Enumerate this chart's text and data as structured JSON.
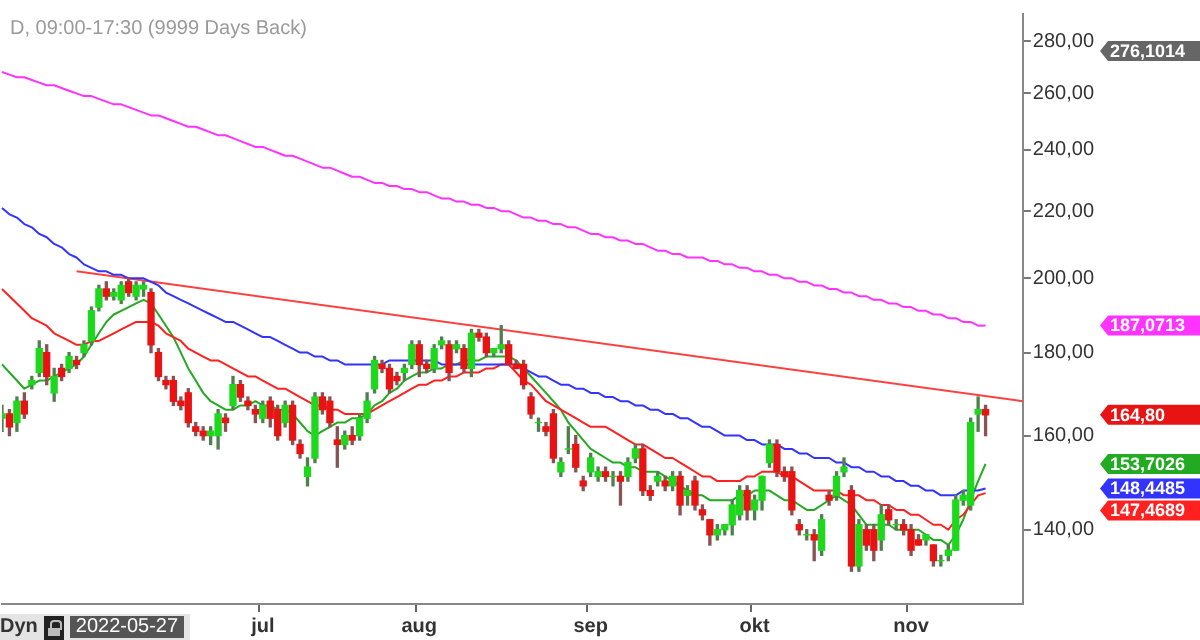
{
  "chart_data": {
    "type": "candlestick",
    "title": "D, 09:00-17:30 (9999 Days Back)",
    "categories": [
      null,
      null,
      null,
      null,
      null,
      null,
      null,
      null,
      null,
      null,
      null,
      null,
      null,
      null,
      null,
      null,
      null,
      null,
      null,
      null,
      null,
      null,
      null,
      null,
      null,
      null,
      null,
      null,
      null,
      null,
      null,
      null,
      null,
      null,
      null,
      "jul",
      null,
      null,
      null,
      null,
      null,
      null,
      null,
      null,
      null,
      null,
      null,
      null,
      null,
      null,
      null,
      null,
      null,
      null,
      null,
      null,
      "aug",
      null,
      null,
      null,
      null,
      null,
      null,
      null,
      null,
      null,
      null,
      null,
      null,
      null,
      null,
      null,
      null,
      null,
      null,
      null,
      null,
      null,
      null,
      "sep",
      null,
      null,
      null,
      null,
      null,
      null,
      null,
      null,
      null,
      null,
      null,
      null,
      null,
      null,
      null,
      null,
      null,
      null,
      null,
      null,
      null,
      "okt",
      null,
      null,
      null,
      null,
      null,
      null,
      null,
      null,
      null,
      null,
      null,
      null,
      null,
      null,
      null,
      null,
      null,
      null,
      null,
      null,
      "nov",
      null,
      null,
      null,
      null,
      null,
      null,
      null,
      null,
      null,
      null,
      null,
      null,
      null,
      null,
      null
    ],
    "ohlc": [
      [
        164,
        167,
        161,
        165
      ],
      [
        165,
        166,
        160,
        162
      ],
      [
        163,
        169,
        161,
        168
      ],
      [
        168,
        170,
        164,
        165
      ],
      [
        172,
        174,
        171,
        173
      ],
      [
        175,
        183,
        174,
        181
      ],
      [
        180,
        182,
        172,
        174
      ],
      [
        170,
        176,
        168,
        174
      ],
      [
        176,
        177,
        173,
        174
      ],
      [
        176,
        180,
        175,
        179
      ],
      [
        178,
        179,
        176,
        177
      ],
      [
        180,
        183,
        179,
        182
      ],
      [
        183,
        192,
        182,
        191
      ],
      [
        192,
        198,
        191,
        197
      ],
      [
        197,
        199,
        194,
        195
      ],
      [
        195,
        197,
        194,
        196
      ],
      [
        194,
        199,
        193,
        198
      ],
      [
        199,
        200,
        195,
        196
      ],
      [
        195,
        199,
        194,
        198
      ],
      [
        197,
        199,
        195,
        198
      ],
      [
        196,
        197,
        180,
        182
      ],
      [
        180,
        181,
        173,
        174
      ],
      [
        173,
        174,
        171,
        172
      ],
      [
        173,
        174,
        167,
        168
      ],
      [
        168,
        169,
        166,
        167
      ],
      [
        170,
        171,
        162,
        163
      ],
      [
        162,
        163,
        160,
        161
      ],
      [
        161,
        162,
        159,
        160
      ],
      [
        160,
        162,
        158,
        161
      ],
      [
        160,
        166,
        157,
        165
      ],
      [
        164,
        165,
        161,
        163
      ],
      [
        167,
        174,
        166,
        172
      ],
      [
        172,
        173,
        168,
        169
      ],
      [
        168,
        169,
        166,
        167
      ],
      [
        166,
        167,
        163,
        165
      ],
      [
        164,
        168,
        163,
        167
      ],
      [
        168,
        169,
        162,
        164
      ],
      [
        166,
        167,
        159,
        160
      ],
      [
        163,
        168,
        162,
        167
      ],
      [
        167,
        168,
        158,
        159
      ],
      [
        158,
        159,
        155,
        156
      ],
      [
        151,
        155,
        149,
        153
      ],
      [
        155,
        170,
        154,
        169
      ],
      [
        169,
        170,
        165,
        166
      ],
      [
        168,
        169,
        162,
        163
      ],
      [
        159,
        162,
        153,
        158
      ],
      [
        158,
        161,
        157,
        160
      ],
      [
        160,
        162,
        158,
        159
      ],
      [
        160,
        165,
        159,
        164
      ],
      [
        164,
        170,
        163,
        168
      ],
      [
        171,
        179,
        170,
        178
      ],
      [
        177,
        178,
        175,
        176
      ],
      [
        176,
        177,
        170,
        171
      ],
      [
        174,
        175,
        172,
        173
      ],
      [
        175,
        177,
        173,
        176
      ],
      [
        177,
        183,
        176,
        182
      ],
      [
        182,
        183,
        174,
        177
      ],
      [
        177,
        178,
        175,
        176
      ],
      [
        176,
        182,
        175,
        181
      ],
      [
        182,
        184,
        181,
        183
      ],
      [
        182,
        183,
        173,
        175
      ],
      [
        181,
        183,
        180,
        182
      ],
      [
        181,
        182,
        175,
        176
      ],
      [
        176,
        186,
        174,
        185
      ],
      [
        185,
        186,
        183,
        184
      ],
      [
        184,
        185,
        179,
        180
      ],
      [
        180,
        181,
        179,
        181
      ],
      [
        181,
        187,
        180,
        182
      ],
      [
        182,
        183,
        177,
        177
      ],
      [
        177,
        178,
        176,
        176
      ],
      [
        177,
        178,
        171,
        172
      ],
      [
        169,
        170,
        164,
        165
      ],
      [
        163,
        164,
        161,
        163
      ],
      [
        162,
        163,
        160,
        161
      ],
      [
        165,
        166,
        154,
        155
      ],
      [
        152,
        155,
        151,
        154
      ],
      [
        157,
        162,
        156,
        157
      ],
      [
        158,
        160,
        152,
        153
      ],
      [
        150,
        151,
        148,
        149
      ],
      [
        152,
        156,
        151,
        155
      ],
      [
        151,
        153,
        150,
        152
      ],
      [
        152,
        153,
        150,
        151
      ],
      [
        151,
        152,
        149,
        151
      ],
      [
        151,
        152,
        145,
        150
      ],
      [
        151,
        155,
        150,
        154
      ],
      [
        155,
        158,
        154,
        157
      ],
      [
        157,
        158,
        147,
        148
      ],
      [
        148,
        149,
        146,
        147
      ],
      [
        150,
        152,
        149,
        151
      ],
      [
        150,
        151,
        148,
        149
      ],
      [
        149,
        152,
        148,
        151
      ],
      [
        151,
        152,
        143,
        145
      ],
      [
        147,
        149,
        145,
        148
      ],
      [
        150,
        151,
        144,
        145
      ],
      [
        144,
        145,
        142,
        143
      ],
      [
        142,
        142,
        137,
        139
      ],
      [
        139,
        141,
        138,
        140
      ],
      [
        140,
        141,
        139,
        141
      ],
      [
        141,
        146,
        139,
        145
      ],
      [
        143,
        149,
        142,
        148
      ],
      [
        148,
        149,
        142,
        144
      ],
      [
        144,
        147,
        142,
        146
      ],
      [
        146,
        151,
        144,
        151
      ],
      [
        154,
        159,
        153,
        158
      ],
      [
        158,
        159,
        151,
        152
      ],
      [
        152,
        153,
        150,
        151
      ],
      [
        152,
        153,
        143,
        144
      ],
      [
        141,
        142,
        139,
        140
      ],
      [
        139,
        140,
        138,
        139
      ],
      [
        139,
        140,
        134,
        138
      ],
      [
        136,
        143,
        135,
        142
      ],
      [
        147,
        148,
        145,
        146
      ],
      [
        147,
        152,
        146,
        151
      ],
      [
        152,
        155,
        151,
        153
      ],
      [
        148,
        149,
        132,
        133
      ],
      [
        133,
        142,
        132,
        141
      ],
      [
        140,
        141,
        136,
        137
      ],
      [
        140,
        141,
        134,
        136
      ],
      [
        138,
        145,
        136,
        143
      ],
      [
        144,
        145,
        141,
        142
      ],
      [
        141,
        142,
        140,
        141
      ],
      [
        141,
        142,
        139,
        140
      ],
      [
        140,
        141,
        135,
        136
      ],
      [
        138,
        139,
        137,
        137
      ],
      [
        138,
        139,
        137,
        139
      ],
      [
        137,
        137,
        133,
        134
      ],
      [
        134,
        135,
        133,
        134
      ],
      [
        135,
        137,
        134,
        136
      ],
      [
        136,
        147,
        136,
        146
      ],
      [
        146,
        148,
        145,
        147
      ],
      [
        145,
        164,
        144,
        163
      ],
      [
        165,
        169,
        161,
        166
      ],
      [
        166,
        167,
        160,
        164.8
      ],
      null,
      null,
      null,
      null,
      null
    ],
    "series": [
      {
        "type": "line",
        "color": "#ff33ff",
        "values": [
          268,
          267,
          266,
          266,
          265,
          264,
          263,
          263,
          262,
          261,
          260,
          259,
          259,
          258,
          257,
          256,
          256,
          255,
          254,
          253,
          252,
          252,
          251,
          250,
          249,
          248,
          248,
          247,
          246,
          245,
          245,
          244,
          243,
          242,
          241,
          241,
          240,
          239,
          238,
          238,
          237,
          236,
          235,
          234,
          234,
          233,
          232,
          231,
          231,
          230,
          229,
          229,
          228,
          228,
          227,
          227,
          226,
          226,
          225,
          224,
          224,
          223,
          223,
          222,
          222,
          221,
          221,
          220,
          220,
          219,
          218,
          218,
          217,
          217,
          216,
          216,
          215,
          215,
          214,
          213,
          213,
          212,
          212,
          211,
          211,
          210,
          210,
          209,
          208,
          208,
          207,
          207,
          206,
          206,
          206,
          205,
          205,
          204,
          204,
          203,
          203,
          202,
          202,
          201,
          201,
          200,
          200,
          199,
          199,
          198,
          198,
          197,
          197,
          196,
          196,
          195,
          195,
          194,
          194,
          193,
          193,
          192,
          192,
          191,
          191,
          190,
          190,
          189,
          189,
          188,
          188,
          187,
          187.07,
          null,
          null,
          null,
          null,
          null
        ]
      },
      {
        "type": "line",
        "color": "#3333ff",
        "values": [
          221,
          219,
          218,
          216,
          215,
          213,
          212,
          210,
          209,
          207,
          206,
          204,
          203,
          202,
          202,
          201,
          201,
          200,
          200,
          200,
          199,
          198,
          196,
          195,
          194,
          193,
          192,
          191,
          190,
          189,
          188,
          188,
          187,
          186,
          185,
          184,
          184,
          183,
          182,
          181,
          180,
          180,
          179,
          179,
          178,
          178,
          177,
          177,
          177,
          177,
          177,
          177,
          178,
          178,
          178,
          178,
          178,
          178,
          178,
          177,
          177,
          177,
          177,
          177,
          177,
          177,
          177,
          177,
          177,
          177,
          176,
          175,
          174,
          174,
          173,
          172,
          172,
          171,
          171,
          170,
          170,
          169,
          169,
          168,
          168,
          167,
          167,
          166,
          166,
          165,
          165,
          164,
          164,
          163,
          162,
          162,
          161,
          160,
          160,
          160,
          159,
          159,
          158,
          158,
          158,
          157,
          157,
          156,
          156,
          155,
          155,
          155,
          154,
          154,
          153,
          153,
          152,
          152,
          151,
          151,
          150,
          150,
          149,
          149,
          148,
          148,
          147,
          147,
          147,
          148,
          148,
          148,
          148.45,
          null,
          null,
          null,
          null,
          null
        ]
      },
      {
        "type": "line",
        "color": "#ff2020",
        "values": [
          197,
          195,
          193,
          191,
          189,
          188,
          187,
          185,
          184,
          183,
          182,
          182,
          183,
          183,
          184,
          185,
          186,
          187,
          188,
          188,
          188,
          187,
          185,
          184,
          183,
          181,
          180,
          179,
          178,
          178,
          177,
          176,
          175,
          174,
          174,
          173,
          172,
          171,
          171,
          170,
          169,
          168,
          167,
          167,
          166,
          166,
          165,
          165,
          165,
          165,
          166,
          167,
          168,
          169,
          170,
          171,
          172,
          172,
          173,
          173,
          174,
          174,
          175,
          175,
          175,
          176,
          176,
          177,
          177,
          175,
          173,
          172,
          170,
          168,
          167,
          166,
          165,
          164,
          163,
          162,
          162,
          162,
          161,
          160,
          159,
          158,
          158,
          157,
          156,
          155,
          155,
          154,
          153,
          152,
          151,
          151,
          150,
          150,
          150,
          150,
          151,
          151,
          152,
          152,
          152,
          151,
          151,
          150,
          149,
          148,
          148,
          148,
          148,
          147,
          147,
          147,
          146,
          146,
          145,
          145,
          144,
          144,
          143,
          143,
          142,
          141,
          141,
          140,
          142,
          143,
          145,
          147,
          147.47,
          null,
          null,
          null,
          null,
          null
        ]
      },
      {
        "type": "line",
        "color": "#22aa22",
        "values": [
          177,
          175,
          173,
          171,
          172,
          173,
          173,
          174,
          175,
          176,
          177,
          179,
          182,
          185,
          188,
          190,
          191,
          192,
          193,
          194,
          193,
          190,
          187,
          184,
          180,
          176,
          173,
          170,
          168,
          167,
          166,
          166,
          167,
          167,
          168,
          167,
          167,
          166,
          166,
          165,
          163,
          161,
          160,
          161,
          162,
          163,
          163,
          164,
          164,
          165,
          167,
          168,
          170,
          171,
          173,
          174,
          175,
          175,
          176,
          176,
          177,
          177,
          178,
          178,
          178,
          179,
          179,
          179,
          179,
          178,
          176,
          174,
          172,
          170,
          168,
          166,
          163,
          161,
          159,
          157,
          156,
          155,
          154,
          154,
          153,
          153,
          152,
          152,
          152,
          151,
          150,
          149,
          148,
          147,
          147,
          146,
          146,
          146,
          146,
          147,
          147,
          148,
          148,
          148,
          147,
          146,
          146,
          145,
          144,
          144,
          145,
          146,
          147,
          146,
          145,
          143,
          141,
          141,
          141,
          141,
          140,
          140,
          140,
          140,
          139,
          138,
          138,
          137,
          139,
          142,
          146,
          150,
          153.7,
          null,
          null,
          null,
          null,
          null
        ]
      },
      {
        "type": "line",
        "color": "#ff4040",
        "values": [
          null,
          null,
          null,
          null,
          null,
          null,
          null,
          null,
          null,
          null,
          202,
          null,
          null,
          null,
          null,
          null,
          null,
          null,
          null,
          null,
          null,
          null,
          null,
          null,
          null,
          null,
          null,
          null,
          null,
          null,
          null,
          null,
          null,
          null,
          null,
          null,
          null,
          null,
          null,
          null,
          null,
          null,
          null,
          null,
          null,
          null,
          null,
          null,
          null,
          null,
          null,
          null,
          null,
          null,
          null,
          null,
          null,
          null,
          null,
          null,
          null,
          null,
          null,
          null,
          null,
          null,
          null,
          null,
          null,
          null,
          null,
          null,
          null,
          null,
          null,
          null,
          null,
          null,
          null,
          null,
          null,
          null,
          null,
          null,
          null,
          null,
          null,
          null,
          null,
          null,
          null,
          null,
          null,
          null,
          null,
          null,
          null,
          null,
          null,
          null,
          null,
          null,
          null,
          null,
          null,
          null,
          null,
          null,
          null,
          null,
          null,
          null,
          null,
          null,
          null,
          null,
          null,
          null,
          null,
          null,
          null,
          null,
          null,
          null,
          null,
          null,
          null,
          null,
          null,
          null,
          null,
          null,
          null,
          null,
          null,
          null,
          null,
          168
        ]
      }
    ],
    "log": true,
    "ylim": [
      126,
      291
    ],
    "yticks": [
      {
        "value": 140,
        "label": "140,00"
      },
      {
        "value": 160,
        "label": "160,00"
      },
      {
        "value": 180,
        "label": "180,00"
      },
      {
        "value": 200,
        "label": "200,00"
      },
      {
        "value": 220,
        "label": "220,00"
      },
      {
        "value": 240,
        "label": "240,00"
      },
      {
        "value": 260,
        "label": "260,00"
      },
      {
        "value": 280,
        "label": "280,00"
      }
    ],
    "annotations": [
      "276,1014",
      "187,0713",
      "164,80",
      "153,7026",
      "148,4485",
      "147,4689",
      "Dyn",
      "2022-05-27"
    ]
  }
}
